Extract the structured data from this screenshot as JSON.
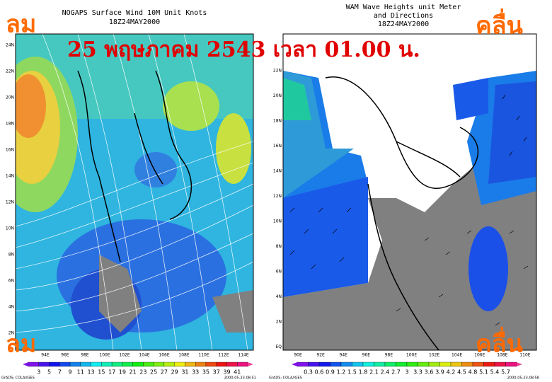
{
  "overlay": {
    "wind_left_top": "ลม",
    "wind_left_bottom": "ลม",
    "wave_right_top": "คลื่น",
    "wave_right_bottom": "คลื่น",
    "date_banner": "25 พฤษภาคม 2543 เวลา 01.00 น."
  },
  "left_panel": {
    "title": "NOGAPS Surface Wind 10M Unit Knots",
    "subtitle": "18Z24MAY2000",
    "y_labels": [
      "24N",
      "22N",
      "20N",
      "18N",
      "16N",
      "14N",
      "12N",
      "10N",
      "8N",
      "6N",
      "4N",
      "2N"
    ],
    "x_labels": [
      "94E",
      "96E",
      "98E",
      "100E",
      "102E",
      "104E",
      "106E",
      "108E",
      "110E",
      "112E",
      "114E"
    ],
    "colorbar_labels": [
      "3",
      "5",
      "7",
      "9",
      "11",
      "13",
      "15",
      "17",
      "19",
      "21",
      "23",
      "25",
      "27",
      "29",
      "31",
      "33",
      "35",
      "37",
      "39",
      "41"
    ],
    "footer_left": "GrADS: COLA/IGES",
    "footer_right": "2000-05-23-08:51"
  },
  "right_panel": {
    "title": "WAM Wave Heights unit Meter",
    "title_line2": "and Directions",
    "subtitle": "18Z24MAY2000",
    "y_labels": [
      "22N",
      "20N",
      "18N",
      "16N",
      "14N",
      "12N",
      "10N",
      "8N",
      "6N",
      "4N",
      "2N",
      "EQ"
    ],
    "x_labels": [
      "90E",
      "92E",
      "94E",
      "96E",
      "98E",
      "100E",
      "102E",
      "104E",
      "106E",
      "108E",
      "110E"
    ],
    "colorbar_labels": [
      "0.3",
      "0.6",
      "0.9",
      "1.2",
      "1.5",
      "1.8",
      "2.1",
      "2.4",
      "2.7",
      "3",
      "3.3",
      "3.6",
      "3.9",
      "4.2",
      "4.5",
      "4.8",
      "5.1",
      "5.4",
      "5.7"
    ],
    "footer_left": "GrADS: COLA/IGES",
    "footer_right": "2000-05-23-08:58"
  }
}
